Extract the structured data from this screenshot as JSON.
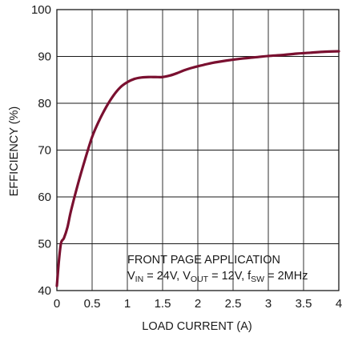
{
  "chart_data": {
    "type": "line",
    "xlabel": "LOAD CURRENT (A)",
    "ylabel": "EFFICIENCY (%)",
    "xlim": [
      0,
      4
    ],
    "ylim": [
      40,
      100
    ],
    "x_ticks": [
      "0",
      "0.5",
      "1",
      "1.5",
      "2",
      "2.5",
      "3",
      "3.5",
      "4"
    ],
    "y_ticks": [
      "40",
      "50",
      "60",
      "70",
      "80",
      "90",
      "100"
    ],
    "grid": true,
    "annotation": {
      "line1": "FRONT PAGE APPLICATION",
      "line2": {
        "v_in_main": "V",
        "v_in_sub": "IN",
        "v_in_value": " = 24V, ",
        "v_out_main": "V",
        "v_out_sub": "OUT",
        "v_out_value": " = 12V, ",
        "f_sw_main": "f",
        "f_sw_sub": "SW",
        "f_sw_value": " = 2MHz"
      }
    },
    "series": [
      {
        "color": "#7a1030",
        "x": [
          0.0,
          0.03,
          0.06,
          0.1,
          0.15,
          0.2,
          0.3,
          0.4,
          0.5,
          0.6,
          0.7,
          0.8,
          0.9,
          1.0,
          1.1,
          1.2,
          1.3,
          1.4,
          1.5,
          1.6,
          1.7,
          1.8,
          1.9,
          2.0,
          2.2,
          2.4,
          2.6,
          2.8,
          3.0,
          3.2,
          3.4,
          3.6,
          3.8,
          4.0
        ],
        "y": [
          41.0,
          46.5,
          50.2,
          51.2,
          53.5,
          57.0,
          62.8,
          68.0,
          72.8,
          76.3,
          79.2,
          81.6,
          83.4,
          84.5,
          85.2,
          85.5,
          85.6,
          85.6,
          85.6,
          85.9,
          86.4,
          87.0,
          87.5,
          87.9,
          88.6,
          89.1,
          89.5,
          89.8,
          90.1,
          90.3,
          90.6,
          90.8,
          91.0,
          91.1
        ]
      }
    ]
  }
}
